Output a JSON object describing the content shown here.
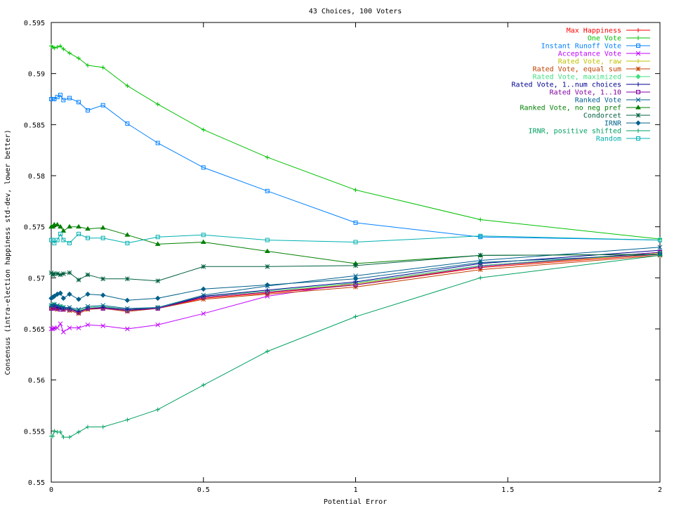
{
  "chart_data": {
    "type": "line",
    "title": "43 Choices, 100 Voters",
    "xlabel": "Potential Error",
    "ylabel": "Consensus (intra-election happiness std-dev, lower better)",
    "xlim": [
      0,
      2
    ],
    "ylim": [
      0.55,
      0.595
    ],
    "xticks": [
      0,
      0.5,
      1,
      1.5,
      2
    ],
    "xtick_labels": [
      "0",
      "0.5",
      "1",
      "1.5",
      "2"
    ],
    "yticks": [
      0.55,
      0.555,
      0.56,
      0.565,
      0.57,
      0.575,
      0.58,
      0.585,
      0.59,
      0.595
    ],
    "ytick_labels": [
      "0.55",
      "0.555",
      "0.56",
      "0.565",
      "0.57",
      "0.575",
      "0.58",
      "0.585",
      "0.59",
      "0.595"
    ],
    "grid": false,
    "legend_position": "top-right",
    "x": [
      0,
      0.005,
      0.01,
      0.02,
      0.03,
      0.04,
      0.06,
      0.09,
      0.12,
      0.17,
      0.25,
      0.35,
      0.5,
      0.71,
      1,
      1.41,
      2
    ],
    "series": [
      {
        "name": "Max Happiness",
        "color": "#ff0000",
        "marker": "plus",
        "values": [
          0.5672,
          0.5672,
          0.5673,
          0.5671,
          0.567,
          0.567,
          0.567,
          0.5667,
          0.567,
          0.5671,
          0.5669,
          0.567,
          0.568,
          0.5685,
          0.5693,
          0.571,
          0.5723
        ]
      },
      {
        "name": "One Vote",
        "color": "#00c000",
        "marker": "plus",
        "values": [
          0.5927,
          0.5926,
          0.5925,
          0.5926,
          0.5927,
          0.5924,
          0.592,
          0.5915,
          0.5908,
          0.5906,
          0.5888,
          0.587,
          0.5845,
          0.5818,
          0.5786,
          0.5757,
          0.5738
        ]
      },
      {
        "name": "Instant Runoff Vote",
        "color": "#0080ff",
        "marker": "square",
        "values": [
          0.5875,
          0.5875,
          0.5875,
          0.5877,
          0.5879,
          0.5874,
          0.5876,
          0.5872,
          0.5864,
          0.5869,
          0.5851,
          0.5832,
          0.5808,
          0.5785,
          0.5754,
          0.574,
          0.5737
        ]
      },
      {
        "name": "Acceptance Vote",
        "color": "#c000ff",
        "marker": "x",
        "values": [
          0.565,
          0.565,
          0.5651,
          0.5651,
          0.5655,
          0.5647,
          0.5651,
          0.5651,
          0.5654,
          0.5653,
          0.565,
          0.5654,
          0.5665,
          0.5682,
          0.5695,
          0.5712,
          0.5725
        ]
      },
      {
        "name": "Rated Vote, raw",
        "color": "#c0c000",
        "marker": "plus",
        "values": [
          0.5671,
          0.5671,
          0.5672,
          0.567,
          0.5671,
          0.5669,
          0.5669,
          0.5666,
          0.567,
          0.567,
          0.5668,
          0.567,
          0.5681,
          0.5686,
          0.5694,
          0.5711,
          0.5724
        ]
      },
      {
        "name": "Rated Vote, equal sum",
        "color": "#c04000",
        "marker": "star",
        "values": [
          0.567,
          0.567,
          0.5671,
          0.5669,
          0.567,
          0.5669,
          0.5668,
          0.5665,
          0.5669,
          0.567,
          0.5667,
          0.567,
          0.5679,
          0.5684,
          0.5691,
          0.5708,
          0.5722
        ]
      },
      {
        "name": "Rated Vote, maximized",
        "color": "#40e080",
        "marker": "diamond",
        "values": [
          0.5673,
          0.5673,
          0.5674,
          0.5672,
          0.5672,
          0.5671,
          0.567,
          0.5668,
          0.5671,
          0.5672,
          0.5669,
          0.5671,
          0.5682,
          0.5687,
          0.5695,
          0.5712,
          0.5725
        ]
      },
      {
        "name": "Rated Vote, 1..num choices",
        "color": "#000090",
        "marker": "plus",
        "values": [
          0.5672,
          0.5672,
          0.5673,
          0.5671,
          0.567,
          0.567,
          0.567,
          0.5667,
          0.567,
          0.5671,
          0.5669,
          0.567,
          0.5682,
          0.5688,
          0.5696,
          0.5714,
          0.5727
        ]
      },
      {
        "name": "Rated Vote, 1..10",
        "color": "#8000a0",
        "marker": "square",
        "values": [
          0.567,
          0.567,
          0.5671,
          0.567,
          0.5669,
          0.5669,
          0.5669,
          0.5666,
          0.567,
          0.567,
          0.5668,
          0.567,
          0.5681,
          0.5686,
          0.5693,
          0.5711,
          0.5725
        ]
      },
      {
        "name": "Ranked Vote",
        "color": "#006090",
        "marker": "x",
        "values": [
          0.5673,
          0.5673,
          0.5674,
          0.5673,
          0.5672,
          0.5671,
          0.5671,
          0.5669,
          0.5672,
          0.5673,
          0.567,
          0.5671,
          0.5683,
          0.5692,
          0.5702,
          0.5717,
          0.573
        ]
      },
      {
        "name": "Ranked Vote, no neg pref",
        "color": "#008000",
        "marker": "triangle",
        "values": [
          0.575,
          0.575,
          0.5752,
          0.5752,
          0.575,
          0.5746,
          0.575,
          0.575,
          0.5748,
          0.5749,
          0.5742,
          0.5733,
          0.5735,
          0.5726,
          0.5714,
          0.5722,
          0.5723
        ]
      },
      {
        "name": "Condorcet",
        "color": "#006040",
        "marker": "star",
        "values": [
          0.5705,
          0.5703,
          0.5704,
          0.5704,
          0.5703,
          0.5704,
          0.5705,
          0.5698,
          0.5703,
          0.5699,
          0.5699,
          0.5697,
          0.5711,
          0.5711,
          0.5712,
          0.5722,
          0.5723
        ]
      },
      {
        "name": "IRNR",
        "color": "#00608a",
        "marker": "diamond",
        "values": [
          0.568,
          0.5681,
          0.5682,
          0.5684,
          0.5685,
          0.568,
          0.5684,
          0.5679,
          0.5684,
          0.5683,
          0.5678,
          0.568,
          0.5689,
          0.5693,
          0.5699,
          0.5715,
          0.5723
        ]
      },
      {
        "name": "IRNR, positive shifted",
        "color": "#00a060",
        "marker": "plus",
        "values": [
          0.5545,
          0.5545,
          0.555,
          0.5549,
          0.5549,
          0.5544,
          0.5544,
          0.5549,
          0.5554,
          0.5554,
          0.5561,
          0.5571,
          0.5595,
          0.5628,
          0.5662,
          0.57,
          0.5722
        ]
      },
      {
        "name": "Random",
        "color": "#00b0b0",
        "marker": "square",
        "values": [
          0.5737,
          0.5737,
          0.5734,
          0.5737,
          0.5743,
          0.5737,
          0.5734,
          0.5743,
          0.5739,
          0.5739,
          0.5734,
          0.574,
          0.5742,
          0.5737,
          0.5735,
          0.5741,
          0.5737
        ]
      }
    ]
  }
}
